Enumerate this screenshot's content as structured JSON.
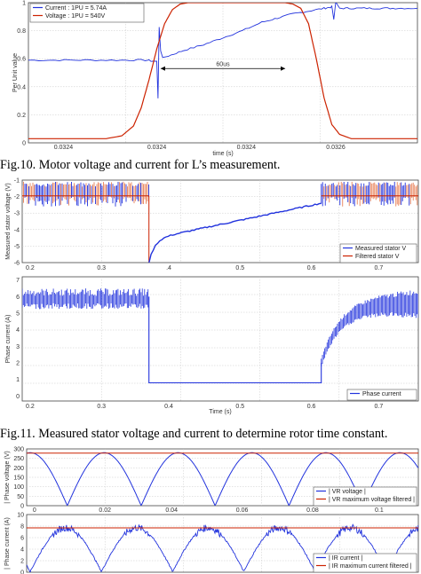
{
  "captions": {
    "fig10": "Fig.10. Motor voltage and current for L’s measurement.",
    "fig11": "Fig.11. Measured stator voltage and current to determine rotor time constant."
  },
  "chart_data": [
    {
      "id": "fig10",
      "type": "line",
      "xlabel": "time (s)",
      "ylabel": "Per Unit value",
      "ylim": [
        0,
        1
      ],
      "yticks": [
        "0",
        "0.2",
        "0.4",
        "0.6",
        "0.8",
        "1"
      ],
      "xticks": [
        "0.0324",
        "0.0324",
        "0.0324",
        "0.0326"
      ],
      "legend_position": "top-left",
      "annotation": "60us",
      "series": [
        {
          "name": "Current : 1PU = 5.74A",
          "color": "#2233dd",
          "x": [
            0,
            0.08,
            0.16,
            0.24,
            0.3,
            0.33,
            0.333,
            0.336,
            0.34,
            0.345,
            0.36,
            0.4,
            0.45,
            0.5,
            0.55,
            0.6,
            0.64,
            0.68,
            0.72,
            0.76,
            0.78,
            0.785,
            0.79,
            0.8,
            0.83,
            0.87,
            0.91,
            0.95,
            1.0
          ],
          "y": [
            0.59,
            0.59,
            0.59,
            0.59,
            0.59,
            0.58,
            0.32,
            0.83,
            0.65,
            0.61,
            0.62,
            0.66,
            0.7,
            0.75,
            0.8,
            0.86,
            0.89,
            0.92,
            0.94,
            0.96,
            0.97,
            0.88,
            1.0,
            0.96,
            0.96,
            0.96,
            0.96,
            0.96,
            0.96
          ]
        },
        {
          "name": "Voltage : 1PU = 540V",
          "color": "#cc2200",
          "x": [
            0,
            0.1,
            0.2,
            0.24,
            0.27,
            0.29,
            0.31,
            0.33,
            0.35,
            0.37,
            0.39,
            0.41,
            0.44,
            0.5,
            0.6,
            0.66,
            0.68,
            0.7,
            0.72,
            0.74,
            0.76,
            0.78,
            0.8,
            0.83,
            0.9,
            1.0
          ],
          "y": [
            0.03,
            0.03,
            0.03,
            0.05,
            0.12,
            0.25,
            0.45,
            0.67,
            0.85,
            0.95,
            0.99,
            1.0,
            1.0,
            1.0,
            1.0,
            1.0,
            0.99,
            0.96,
            0.85,
            0.6,
            0.32,
            0.13,
            0.06,
            0.03,
            0.03,
            0.03
          ]
        }
      ]
    },
    {
      "id": "fig11a",
      "type": "line",
      "ylabel": "Measured stator voltage (V)",
      "ylim": [
        -6,
        -1
      ],
      "yticks": [
        "-1",
        "-2",
        "-3",
        "-4",
        "-5",
        "-6"
      ],
      "xticks": [
        "0.2",
        "0.3",
        ".4",
        "0.5",
        "0.6",
        "0.7"
      ],
      "legend_position": "bottom-right",
      "series": [
        {
          "name": "Measured stator V",
          "color": "#2233dd"
        },
        {
          "name": "Filtered stator V",
          "color": "#cc2200"
        }
      ]
    },
    {
      "id": "fig11b",
      "type": "line",
      "xlabel": "Time (s)",
      "ylabel": "Phase current (A)",
      "yticks": [
        "7",
        "6",
        "5",
        "4",
        "3",
        "2",
        "1",
        "0"
      ],
      "xticks": [
        "0.2",
        "0.3",
        "0.4",
        "0.5",
        "0.6",
        "0.7"
      ],
      "legend_position": "bottom-right",
      "series": [
        {
          "name": "Phase current",
          "color": "#2233dd"
        }
      ]
    },
    {
      "id": "fig12a",
      "type": "line",
      "ylabel": "| Phase voltage (V)",
      "ylim": [
        0,
        300
      ],
      "yticks": [
        "300",
        "250",
        "200",
        "150",
        "100",
        "50",
        "0"
      ],
      "xticks": [
        "0",
        "0.02",
        "0.04",
        "0.06",
        "0.08",
        "0.1"
      ],
      "legend_position": "bottom-right",
      "series": [
        {
          "name": "| VR voltage |",
          "color": "#2233dd"
        },
        {
          "name": "| VR maximum voltage filtered |",
          "color": "#cc2200",
          "value": 278
        }
      ]
    },
    {
      "id": "fig12b",
      "type": "line",
      "ylabel": "| Phase current (A)",
      "ylim": [
        0,
        10
      ],
      "yticks": [
        "10",
        "8",
        "6",
        "4",
        "2",
        "0"
      ],
      "legend_position": "bottom-right",
      "series": [
        {
          "name": "| IR current |",
          "color": "#2233dd"
        },
        {
          "name": "| IR maximum current filtered |",
          "color": "#cc2200",
          "value": 7.7
        }
      ]
    }
  ]
}
